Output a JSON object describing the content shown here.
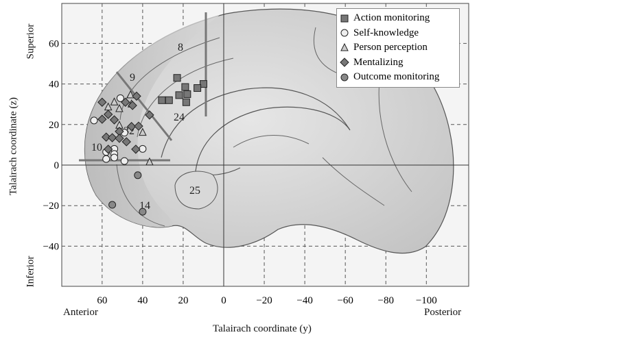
{
  "chart_data": {
    "type": "scatter",
    "xlabel": "Talairach coordinate (y)",
    "ylabel": "Talairach coordinate (z)",
    "x_left_label": "Anterior",
    "x_right_label": "Posterior",
    "y_top_label": "Superior",
    "y_bottom_label": "Inferior",
    "xlim": [
      80,
      -120
    ],
    "ylim": [
      -60,
      80
    ],
    "x_reversed": true,
    "x_ticks": [
      60,
      40,
      20,
      0,
      -20,
      -40,
      -60,
      -80,
      -100
    ],
    "x_tick_labels": [
      "60",
      "40",
      "20",
      "0",
      "−20",
      "−40",
      "−60",
      "−80",
      "−100"
    ],
    "y_ticks": [
      60,
      40,
      20,
      0,
      -20,
      -40
    ],
    "y_tick_labels": [
      "60",
      "40",
      "20",
      "0",
      "−20",
      "−40"
    ],
    "grid": true,
    "legend_position": "top-right",
    "region_labels": [
      "8",
      "9",
      "10",
      "24",
      "25",
      "14",
      "32"
    ],
    "series": [
      {
        "name": "Action monitoring",
        "marker": "square",
        "color": "#777777",
        "points": [
          [
            23,
            43
          ],
          [
            19,
            38.5
          ],
          [
            10,
            40
          ],
          [
            13,
            38
          ],
          [
            30.5,
            32
          ],
          [
            27,
            32
          ],
          [
            22,
            34.5
          ],
          [
            18,
            35
          ],
          [
            18.5,
            31
          ]
        ]
      },
      {
        "name": "Self-knowledge",
        "marker": "circle",
        "color": "#eeeeee",
        "points": [
          [
            51,
            33
          ],
          [
            64,
            22
          ],
          [
            49,
            16
          ],
          [
            54,
            8
          ],
          [
            58,
            6.5
          ],
          [
            54,
            5.5
          ],
          [
            58,
            3
          ],
          [
            49,
            2
          ],
          [
            40,
            8
          ],
          [
            54,
            3.7
          ]
        ]
      },
      {
        "name": "Person perception",
        "marker": "triangle",
        "color": "#cccccc",
        "points": [
          [
            46,
            34.5
          ],
          [
            54,
            31
          ],
          [
            57,
            28.5
          ],
          [
            51.5,
            27.7
          ],
          [
            45.5,
            30
          ],
          [
            51.5,
            19.5
          ],
          [
            40,
            16
          ],
          [
            36.6,
            1.4
          ]
        ]
      },
      {
        "name": "Mentalizing",
        "marker": "diamond",
        "color": "#777777",
        "points": [
          [
            60,
            31
          ],
          [
            43,
            34
          ],
          [
            48.5,
            31
          ],
          [
            45,
            29.4
          ],
          [
            57,
            25
          ],
          [
            60,
            22.6
          ],
          [
            54,
            22.3
          ],
          [
            36.6,
            24.7
          ],
          [
            45.5,
            19
          ],
          [
            42,
            19.2
          ],
          [
            51.5,
            16.6
          ],
          [
            58,
            13.8
          ],
          [
            55,
            13.5
          ],
          [
            51.5,
            13.2
          ],
          [
            48,
            11.5
          ],
          [
            57,
            7.8
          ],
          [
            43.4,
            7.8
          ]
        ]
      },
      {
        "name": "Outcome monitoring",
        "marker": "circle",
        "color": "#888888",
        "points": [
          [
            42.4,
            -5
          ],
          [
            55,
            -19.6
          ],
          [
            40,
            -23
          ]
        ]
      }
    ]
  }
}
